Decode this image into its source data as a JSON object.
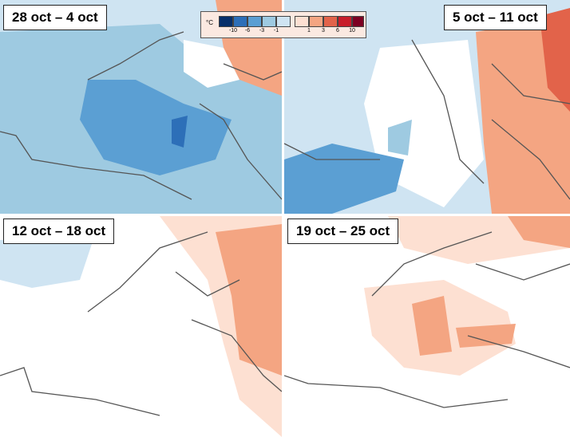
{
  "panels": [
    {
      "label": "28 oct – 4 oct"
    },
    {
      "label": "5 oct – 11 oct"
    },
    {
      "label": "12 oct – 18 oct"
    },
    {
      "label": "19 oct – 25 oct"
    }
  ],
  "legend": {
    "unit": "°C",
    "cold_colors": [
      "#08306b",
      "#2d6fb8",
      "#5b9fd3",
      "#9ecae1",
      "#cfe4f2"
    ],
    "warm_colors": [
      "#fde0d2",
      "#f4a582",
      "#e2634a",
      "#c81d2a",
      "#7d0022"
    ],
    "cold_ticks": [
      "-10",
      "-6",
      "-3",
      "-1"
    ],
    "warm_ticks": [
      "1",
      "3",
      "6",
      "10"
    ]
  }
}
